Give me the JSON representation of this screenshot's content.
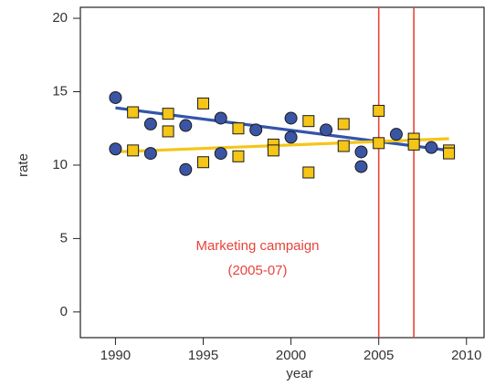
{
  "chart_data": {
    "type": "scatter",
    "x_label": "year",
    "y_label": "rate",
    "xlim": [
      1988,
      2011
    ],
    "ylim": [
      -1.75,
      20.75
    ],
    "xticks": [
      1990,
      1995,
      2000,
      2005,
      2010
    ],
    "yticks": [
      0,
      5,
      10,
      15,
      20
    ],
    "series": [
      {
        "color": "#3a55a4",
        "marker": "circle",
        "x": [
          1990,
          1990,
          1992,
          1992,
          1994,
          1994,
          1996,
          1996,
          1998,
          2000,
          2000,
          2002,
          2004,
          2004,
          2006,
          2008
        ],
        "values": [
          14.6,
          11.1,
          12.8,
          10.8,
          9.7,
          12.7,
          13.2,
          10.8,
          12.4,
          13.2,
          11.9,
          12.4,
          10.9,
          9.9,
          12.1,
          11.2
        ],
        "trend_x": [
          1990,
          2009
        ],
        "trend_y": [
          13.9,
          11.0
        ]
      },
      {
        "color": "#f5c518",
        "marker": "square",
        "x": [
          1991,
          1991,
          1993,
          1993,
          1995,
          1995,
          1997,
          1997,
          1999,
          1999,
          2001,
          2001,
          2003,
          2003,
          2005,
          2005,
          2007,
          2007,
          2009,
          2009
        ],
        "values": [
          13.6,
          11.0,
          13.5,
          12.3,
          14.2,
          10.2,
          12.5,
          10.6,
          11.4,
          11.0,
          13.0,
          9.5,
          12.8,
          11.3,
          13.7,
          11.5,
          11.8,
          11.4,
          11.0,
          10.8
        ],
        "trend_x": [
          1990,
          2009
        ],
        "trend_y": [
          10.9,
          11.8
        ]
      }
    ],
    "vlines": [
      2005,
      2007
    ],
    "vline_color": "#e8433a",
    "annotation": [
      "Marketing campaign",
      "(2005-07)"
    ]
  }
}
